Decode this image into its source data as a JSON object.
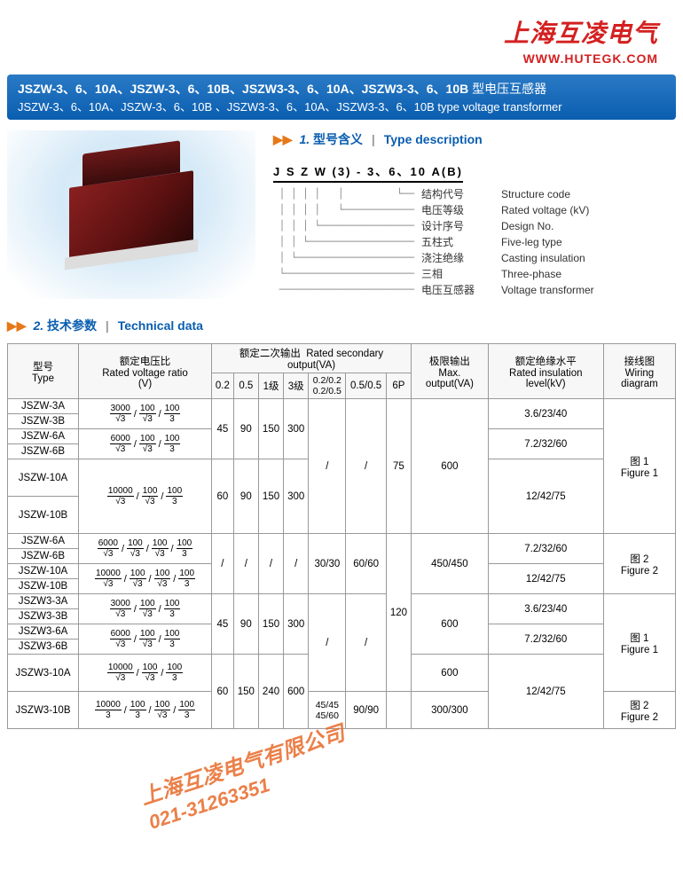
{
  "brand": {
    "logo_text": "上海互凌电气",
    "url": "WWW.HUTEGK.COM",
    "color": "#d42020"
  },
  "title_bar": {
    "models_cn": "JSZW-3、6、10A、JSZW-3、6、10B、JSZW3-3、6、10A、JSZW3-3、6、10B",
    "suffix_cn": " 型电压互感器",
    "models_en": "JSZW-3、6、10A、JSZW-3、6、10B 、JSZW3-3、6、10A、JSZW3-3、6、10B type voltage transformer",
    "bg_top": "#2a7ac5",
    "bg_bottom": "#0a5eb0",
    "text_color": "#ffffff"
  },
  "section1": {
    "arrows": "▶▶",
    "num": "1.",
    "cn": "型号含义",
    "en": "Type description",
    "code": "J S Z W (3) - 3、6、10 A(B)",
    "rows": [
      {
        "cn": "结构代号",
        "en": "Structure code"
      },
      {
        "cn": "电压等级",
        "en": "Rated voltage (kV)"
      },
      {
        "cn": "设计序号",
        "en": "Design No."
      },
      {
        "cn": "五柱式",
        "en": "Five-leg type"
      },
      {
        "cn": "浇注绝缘",
        "en": "Casting insulation"
      },
      {
        "cn": "三相",
        "en": "Three-phase"
      },
      {
        "cn": "电压互感器",
        "en": "Voltage transformer"
      }
    ]
  },
  "section2": {
    "arrows": "▶▶",
    "num": "2.",
    "cn": "技术参数",
    "en": "Technical data"
  },
  "table": {
    "headers": {
      "type_cn": "型号",
      "type_en": "Type",
      "ratio_cn": "额定电压比",
      "ratio_en": "Rated voltage ratio",
      "ratio_unit": "(V)",
      "sec_out_cn": "额定二次输出",
      "sec_out_en": "Rated secondary output(VA)",
      "cols": [
        "0.2",
        "0.5",
        "1级",
        "3级"
      ],
      "col5_top": "0.2/0.2",
      "col5_bot": "0.2/0.5",
      "col6": "0.5/0.5",
      "col7": "6P",
      "max_cn": "极限输出",
      "max_en": "Max. output(VA)",
      "ins_cn": "额定绝缘水平",
      "ins_en": "Rated insulation level(kV)",
      "wiring_cn": "接线图",
      "wiring_en": "Wiring diagram"
    },
    "rows": [
      {
        "type": "JSZW-3A"
      },
      {
        "type": "JSZW-3B"
      },
      {
        "type": "JSZW-6A"
      },
      {
        "type": "JSZW-6B"
      },
      {
        "type": "JSZW-10A"
      },
      {
        "type": "JSZW-10B"
      },
      {
        "type": "JSZW-6A"
      },
      {
        "type": "JSZW-6B"
      },
      {
        "type": "JSZW-10A"
      },
      {
        "type": "JSZW-10B"
      },
      {
        "type": "JSZW3-3A"
      },
      {
        "type": "JSZW3-3B"
      },
      {
        "type": "JSZW3-6A"
      },
      {
        "type": "JSZW3-6B"
      },
      {
        "type": "JSZW3-10A"
      },
      {
        "type": "JSZW3-10B"
      }
    ],
    "ratios": {
      "r3000_3": [
        [
          "3000",
          "√3"
        ],
        [
          "100",
          "√3"
        ],
        [
          "100",
          "3"
        ]
      ],
      "r6000_3": [
        [
          "6000",
          "√3"
        ],
        [
          "100",
          "√3"
        ],
        [
          "100",
          "3"
        ]
      ],
      "r10000_3": [
        [
          "10000",
          "√3"
        ],
        [
          "100",
          "√3"
        ],
        [
          "100",
          "3"
        ]
      ],
      "r6000_4": [
        [
          "6000",
          "√3"
        ],
        [
          "100",
          "√3"
        ],
        [
          "100",
          "√3"
        ],
        [
          "100",
          "3"
        ]
      ],
      "r10000_4": [
        [
          "10000",
          "√3"
        ],
        [
          "100",
          "√3"
        ],
        [
          "100",
          "√3"
        ],
        [
          "100",
          "3"
        ]
      ],
      "r10000_3b": [
        [
          "10000",
          "3"
        ],
        [
          "100",
          "3"
        ],
        [
          "100",
          "√3"
        ],
        [
          "100",
          "3"
        ]
      ]
    },
    "secondary": {
      "g1": [
        "45",
        "90",
        "150",
        "300"
      ],
      "g2": [
        "60",
        "90",
        "150",
        "300"
      ],
      "g3": [
        "/",
        "/",
        "/",
        "/"
      ],
      "g4": [
        "45",
        "90",
        "150",
        "300"
      ],
      "g5": [
        "60",
        "150",
        "240",
        "600"
      ],
      "g6": [
        "/",
        "/",
        "/",
        "/"
      ]
    },
    "col5": {
      "slash": "/",
      "v30_30": "30/30",
      "v45_45": "45/45",
      "v45_60": "45/60"
    },
    "col6": {
      "slash": "/",
      "v60_60": "60/60",
      "v90_90": "90/90"
    },
    "col7": {
      "v75": "75",
      "v120": "120"
    },
    "max": {
      "v600": "600",
      "v450": "450/450",
      "v300": "300/300"
    },
    "ins": {
      "v3": "3.6/23/40",
      "v6": "7.2/32/60",
      "v10": "12/42/75"
    },
    "wiring": {
      "f1_cn": "图 1",
      "f1_en": "Figure 1",
      "f2_cn": "图 2",
      "f2_en": "Figure 2"
    }
  },
  "watermark": {
    "line1": "上海互凌电气有限公司",
    "line2": "021-31263351",
    "color": "#e86a2a"
  }
}
